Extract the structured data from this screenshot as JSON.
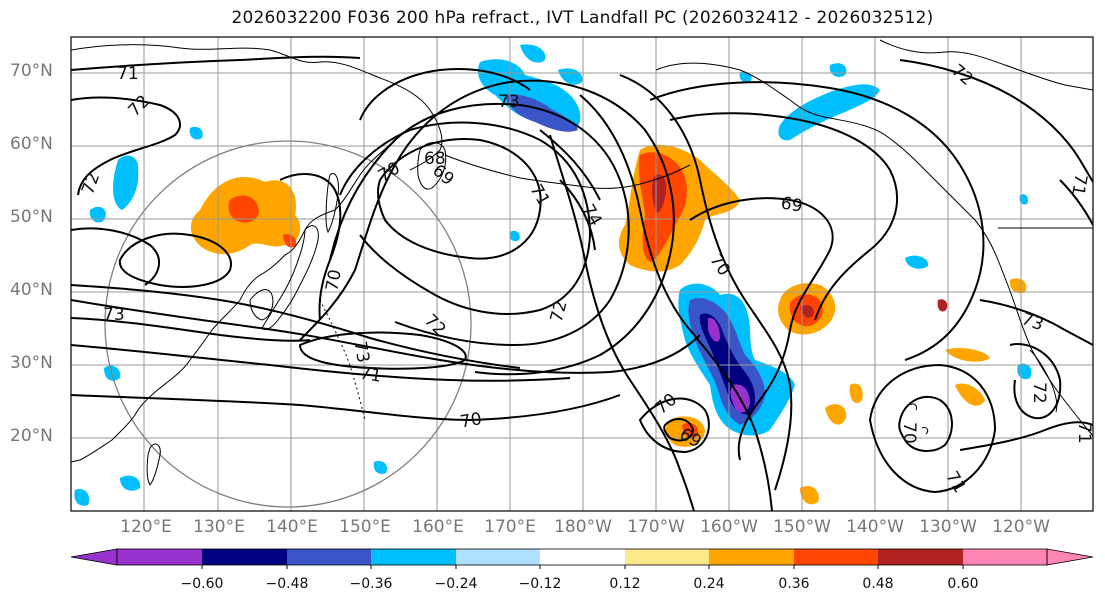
{
  "title": "2026032200 F036 200 hPa refract., IVT Landfall PC (2026032412 - 2026032512)",
  "lat_labels": [
    "70°N",
    "60°N",
    "50°N",
    "40°N",
    "30°N",
    "20°N"
  ],
  "lon_labels": [
    "120°E",
    "130°E",
    "140°E",
    "150°E",
    "160°E",
    "170°E",
    "180°W",
    "170°W",
    "160°W",
    "150°W",
    "140°W",
    "130°W",
    "120°W"
  ],
  "colorbar": {
    "levels": [
      "−0.60",
      "−0.48",
      "−0.36",
      "−0.24",
      "−0.12",
      "0.12",
      "0.24",
      "0.36",
      "0.48",
      "0.60"
    ],
    "colors": [
      "#9932cc",
      "#000080",
      "#3a55c8",
      "#00bfff",
      "#b0e0ff",
      "#ffffff",
      "#ffe88a",
      "#ffa500",
      "#ff4500",
      "#b22222",
      "#ff85b5"
    ]
  },
  "contour_labels": [
    "71",
    "72",
    "73",
    "70",
    "69",
    "68",
    "71",
    "74",
    "72",
    "73",
    "71",
    "70",
    "72",
    "70",
    "69",
    "70",
    "69",
    "73",
    "72",
    "70",
    "71",
    "72",
    "71",
    "72",
    "70",
    "73",
    "71"
  ],
  "colors": {
    "contour": "#000000",
    "coast": "#000000",
    "grid": "#999999",
    "circle": "#808080"
  }
}
